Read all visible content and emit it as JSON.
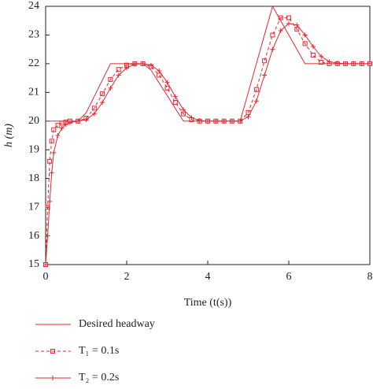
{
  "chart_data": {
    "type": "line",
    "xlabel": "Time (t(s))",
    "ylabel": "h (m)",
    "x": [
      0,
      0.05,
      0.1,
      0.15,
      0.2,
      0.3,
      0.4,
      0.5,
      0.6,
      0.8,
      1.0,
      1.2,
      1.4,
      1.6,
      1.8,
      2.0,
      2.2,
      2.4,
      2.6,
      2.8,
      3.0,
      3.2,
      3.4,
      3.6,
      3.8,
      4.0,
      4.2,
      4.4,
      4.6,
      4.8,
      5.0,
      5.2,
      5.4,
      5.6,
      5.8,
      6.0,
      6.2,
      6.4,
      6.6,
      6.8,
      7.0,
      7.2,
      7.4,
      7.6,
      7.8,
      8.0
    ],
    "series": [
      {
        "name": "Desired headway",
        "color": "#e8262e",
        "marker": "none",
        "dash": false,
        "values": [
          20,
          20,
          20,
          20,
          20,
          20,
          20,
          20,
          20,
          20,
          20.29,
          20.86,
          21.43,
          22,
          22,
          22,
          22,
          22,
          21.78,
          21.33,
          20.89,
          20.44,
          20,
          20,
          20,
          20,
          20,
          20,
          20,
          20,
          21,
          22,
          23,
          24,
          23.5,
          23,
          22.5,
          22,
          22,
          22,
          22,
          22,
          22,
          22,
          22,
          22
        ]
      },
      {
        "name": "T₁ = 0.1s",
        "color": "#e8262e",
        "marker": "square",
        "dash": true,
        "values": [
          15,
          17,
          18.6,
          19.3,
          19.7,
          19.85,
          19.93,
          19.97,
          20,
          20,
          20.1,
          20.45,
          20.95,
          21.45,
          21.8,
          21.95,
          22,
          22,
          21.9,
          21.6,
          21.15,
          20.65,
          20.25,
          20.05,
          20,
          20,
          20,
          20,
          20,
          20,
          20.3,
          21.1,
          22.1,
          23.0,
          23.6,
          23.6,
          23.2,
          22.7,
          22.3,
          22.05,
          22,
          22,
          22,
          22,
          22,
          22
        ]
      },
      {
        "name": "T₂ = 0.2s",
        "color": "#e8262e",
        "marker": "plus",
        "dash": false,
        "values": [
          15,
          16,
          17.2,
          18.2,
          18.9,
          19.5,
          19.75,
          19.88,
          19.95,
          20,
          20.05,
          20.25,
          20.65,
          21.15,
          21.6,
          21.85,
          21.98,
          22,
          21.95,
          21.75,
          21.35,
          20.85,
          20.4,
          20.12,
          20.02,
          20,
          20,
          20,
          20,
          20,
          20.15,
          20.7,
          21.6,
          22.5,
          23.15,
          23.4,
          23.35,
          23.0,
          22.6,
          22.25,
          22.07,
          22.02,
          22,
          22,
          22,
          22
        ]
      }
    ],
    "xlim": [
      0,
      8
    ],
    "xticks": [
      0,
      2,
      4,
      6,
      8
    ],
    "ylim": [
      15,
      24
    ],
    "yticks": [
      15,
      16,
      17,
      18,
      19,
      20,
      21,
      22,
      23,
      24
    ],
    "grid": false,
    "legend": "bottom"
  }
}
